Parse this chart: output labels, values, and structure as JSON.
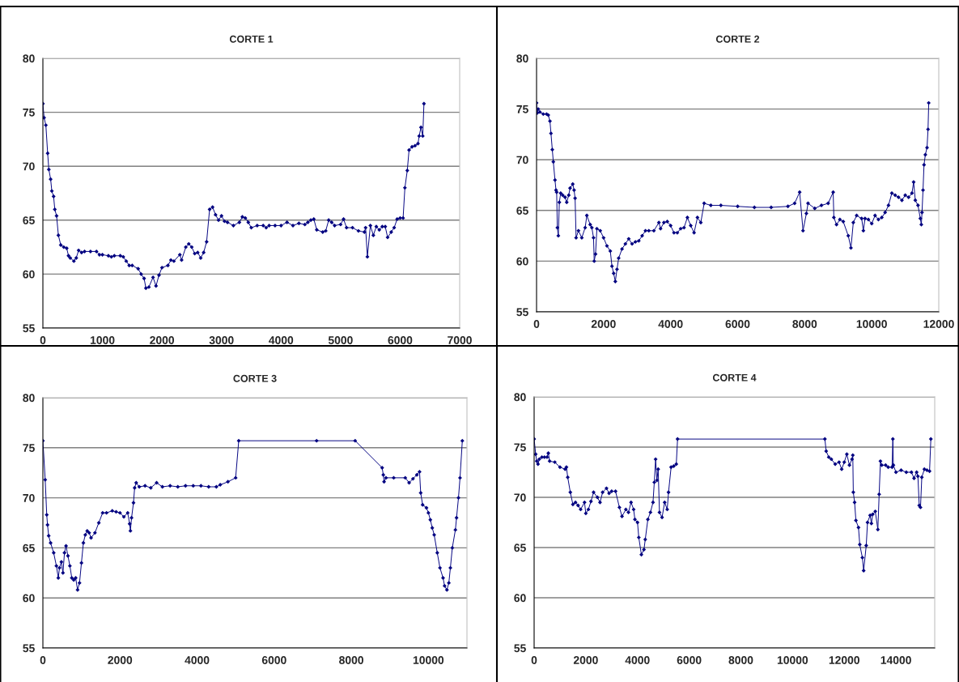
{
  "chart_data": [
    {
      "type": "line",
      "title": "CORTE 1",
      "xlim": [
        0,
        7000
      ],
      "xticks": [
        0,
        1000,
        2000,
        3000,
        4000,
        5000,
        6000,
        7000
      ],
      "ylim": [
        55,
        80
      ],
      "yticks": [
        55,
        60,
        65,
        70,
        75,
        80
      ],
      "grid": "y",
      "marker": "diamond",
      "line_style": "solid",
      "series": [
        {
          "color": "#000080",
          "x": [
            0,
            20,
            50,
            80,
            100,
            130,
            150,
            180,
            200,
            230,
            260,
            300,
            350,
            400,
            430,
            460,
            520,
            560,
            600,
            650,
            700,
            800,
            900,
            950,
            1000,
            1100,
            1150,
            1200,
            1300,
            1350,
            1400,
            1450,
            1500,
            1600,
            1650,
            1700,
            1730,
            1780,
            1850,
            1900,
            1950,
            2000,
            2100,
            2150,
            2200,
            2300,
            2330,
            2400,
            2450,
            2500,
            2550,
            2600,
            2650,
            2700,
            2750,
            2800,
            2850,
            2900,
            2950,
            3000,
            3050,
            3100,
            3200,
            3300,
            3350,
            3400,
            3450,
            3500,
            3600,
            3700,
            3750,
            3800,
            3900,
            4000,
            4100,
            4200,
            4300,
            4400,
            4450,
            4500,
            4550,
            4600,
            4700,
            4750,
            4800,
            4850,
            4900,
            5000,
            5050,
            5100,
            5200,
            5300,
            5400,
            5420,
            5450,
            5500,
            5550,
            5600,
            5650,
            5700,
            5750,
            5790,
            5850,
            5900,
            5950,
            6000,
            6050,
            6080,
            6120,
            6150,
            6200,
            6250,
            6300,
            6320,
            6350,
            6380,
            6400
          ],
          "values": [
            75.8,
            74.5,
            73.8,
            71.2,
            69.7,
            68.8,
            67.7,
            67.2,
            66,
            65.4,
            63.6,
            62.7,
            62.5,
            62.4,
            61.7,
            61.5,
            61.2,
            61.5,
            62.2,
            62,
            62.1,
            62.1,
            62.1,
            61.8,
            61.8,
            61.7,
            61.6,
            61.7,
            61.7,
            61.6,
            61.2,
            60.8,
            60.8,
            60.5,
            60,
            59.6,
            58.7,
            58.8,
            59.7,
            58.9,
            59.9,
            60.6,
            60.8,
            61.3,
            61.2,
            61.8,
            61.3,
            62.5,
            62.8,
            62.5,
            61.9,
            62,
            61.5,
            62,
            63,
            66,
            66.2,
            65.5,
            65,
            65.4,
            64.9,
            64.8,
            64.5,
            64.8,
            65.3,
            65.2,
            64.8,
            64.3,
            64.5,
            64.5,
            64.3,
            64.5,
            64.5,
            64.5,
            64.8,
            64.5,
            64.7,
            64.6,
            64.8,
            65,
            65.1,
            64.1,
            63.9,
            64,
            65,
            64.8,
            64.5,
            64.6,
            65.1,
            64.3,
            64.3,
            64,
            63.9,
            64.3,
            61.6,
            64.5,
            63.6,
            64.4,
            64.1,
            64.4,
            64.4,
            63.4,
            63.9,
            64.3,
            65.1,
            65.2,
            65.2,
            68,
            69.6,
            71.5,
            71.8,
            71.9,
            72.1,
            72.8,
            73.6,
            72.8,
            75.8
          ]
        }
      ]
    },
    {
      "type": "line",
      "title": "CORTE 2",
      "xlim": [
        0,
        12000
      ],
      "xticks": [
        0,
        2000,
        4000,
        6000,
        8000,
        10000,
        12000
      ],
      "ylim": [
        55,
        80
      ],
      "yticks": [
        55,
        60,
        65,
        70,
        75,
        80
      ],
      "grid": "y",
      "marker": "diamond",
      "line_style": "solid",
      "series": [
        {
          "color": "#000080",
          "x": [
            0,
            20,
            50,
            100,
            200,
            300,
            350,
            400,
            430,
            470,
            500,
            550,
            580,
            600,
            620,
            650,
            680,
            720,
            780,
            850,
            900,
            960,
            1000,
            1080,
            1120,
            1150,
            1180,
            1250,
            1350,
            1450,
            1500,
            1600,
            1650,
            1700,
            1720,
            1760,
            1800,
            1900,
            2000,
            2100,
            2200,
            2250,
            2300,
            2350,
            2400,
            2450,
            2550,
            2650,
            2750,
            2850,
            2950,
            3050,
            3150,
            3250,
            3350,
            3500,
            3650,
            3700,
            3800,
            3900,
            4000,
            4100,
            4200,
            4300,
            4400,
            4500,
            4600,
            4700,
            4800,
            4900,
            5000,
            5200,
            5500,
            6000,
            6500,
            7000,
            7500,
            7700,
            7850,
            7950,
            8050,
            8100,
            8300,
            8500,
            8700,
            8850,
            8870,
            8950,
            9050,
            9150,
            9300,
            9380,
            9450,
            9550,
            9700,
            9750,
            9800,
            9900,
            10000,
            10100,
            10200,
            10300,
            10400,
            10500,
            10600,
            10700,
            10800,
            10900,
            11000,
            11100,
            11200,
            11250,
            11300,
            11380,
            11450,
            11480,
            11500,
            11530,
            11560,
            11600,
            11650,
            11680,
            11700
          ],
          "values": [
            75.6,
            74.6,
            75,
            74.7,
            74.5,
            74.5,
            74.4,
            73.8,
            72.6,
            71,
            69.8,
            68,
            67,
            66.8,
            63.3,
            62.5,
            65.8,
            66.7,
            66.5,
            66.3,
            65.8,
            66.5,
            67.2,
            67.6,
            67,
            66.2,
            62.3,
            63,
            62.3,
            63.3,
            64.5,
            63.6,
            63.3,
            62.3,
            60,
            60.7,
            63.2,
            63,
            62.3,
            61.5,
            61,
            59.5,
            58.8,
            58,
            59.2,
            60.3,
            61.2,
            61.7,
            62.2,
            61.7,
            61.9,
            62,
            62.5,
            63,
            63,
            63,
            63.8,
            63.2,
            63.8,
            63.9,
            63.5,
            62.8,
            62.8,
            63.2,
            63.3,
            64.3,
            63.5,
            62.8,
            64.3,
            63.8,
            65.7,
            65.5,
            65.5,
            65.4,
            65.3,
            65.3,
            65.4,
            65.7,
            66.8,
            63,
            64.7,
            65.7,
            65.2,
            65.5,
            65.7,
            66.8,
            64.3,
            63.6,
            64.1,
            63.9,
            62.5,
            61.3,
            63.8,
            64.5,
            64.2,
            63,
            64.2,
            64.1,
            63.7,
            64.5,
            64.1,
            64.3,
            64.8,
            65.5,
            66.7,
            66.5,
            66.3,
            66,
            66.5,
            66.3,
            66.7,
            67.8,
            66,
            65.5,
            64.2,
            63.6,
            64.8,
            67,
            69.5,
            70.5,
            71.2,
            73,
            75.6
          ]
        }
      ]
    },
    {
      "type": "line",
      "title": "CORTE 3",
      "xlim": [
        0,
        11000
      ],
      "xticks": [
        0,
        2000,
        4000,
        6000,
        8000,
        10000
      ],
      "ylim": [
        55,
        80
      ],
      "yticks": [
        55,
        60,
        65,
        70,
        75,
        80
      ],
      "grid": "y",
      "marker": "diamond",
      "line_style": "solid",
      "series": [
        {
          "color": "#000080",
          "x": [
            0,
            60,
            100,
            120,
            150,
            200,
            280,
            350,
            400,
            430,
            480,
            520,
            560,
            600,
            650,
            700,
            750,
            800,
            850,
            900,
            950,
            1000,
            1050,
            1100,
            1150,
            1200,
            1250,
            1350,
            1450,
            1550,
            1650,
            1800,
            1900,
            2000,
            2100,
            2200,
            2250,
            2270,
            2300,
            2350,
            2380,
            2420,
            2500,
            2650,
            2800,
            2950,
            3100,
            3300,
            3500,
            3700,
            3900,
            4100,
            4300,
            4500,
            4600,
            4800,
            5000,
            5080,
            7100,
            8100,
            8800,
            8830,
            8850,
            8900,
            9100,
            9400,
            9500,
            9600,
            9700,
            9770,
            9800,
            9850,
            9950,
            10000,
            10050,
            10100,
            10150,
            10230,
            10300,
            10380,
            10420,
            10480,
            10530,
            10570,
            10620,
            10700,
            10730,
            10780,
            10820,
            10880
          ],
          "values": [
            75.7,
            71.8,
            68.3,
            67.3,
            66.2,
            65.5,
            64.5,
            63.2,
            62,
            63,
            63.6,
            62.5,
            64.5,
            65.2,
            64.2,
            63.2,
            62,
            61.8,
            62,
            60.8,
            61.5,
            63.5,
            65.5,
            66.3,
            66.7,
            66.5,
            66,
            66.5,
            67.5,
            68.5,
            68.5,
            68.7,
            68.6,
            68.5,
            68.1,
            68.5,
            67.4,
            66.7,
            68,
            69.5,
            71,
            71.5,
            71.1,
            71.2,
            71,
            71.5,
            71.1,
            71.2,
            71.1,
            71.2,
            71.2,
            71.2,
            71.1,
            71.1,
            71.3,
            71.6,
            72,
            75.7,
            75.7,
            75.7,
            73,
            72.3,
            71.6,
            72,
            72,
            72,
            71.5,
            71.9,
            72.3,
            72.6,
            70.5,
            69.3,
            69,
            68.5,
            67.8,
            67,
            66.3,
            64.5,
            63,
            62,
            61.2,
            60.8,
            61.5,
            63,
            65,
            66.8,
            68,
            70,
            72,
            75.7
          ]
        }
      ]
    },
    {
      "type": "line",
      "title": "CORTE 4",
      "xlim": [
        0,
        15500
      ],
      "xticks": [
        0,
        2000,
        4000,
        6000,
        8000,
        10000,
        12000,
        14000
      ],
      "ylim": [
        55,
        80
      ],
      "yticks": [
        55,
        60,
        65,
        70,
        75,
        80
      ],
      "grid": "y",
      "marker": "diamond",
      "line_style": "solid",
      "series": [
        {
          "color": "#000080",
          "x": [
            0,
            60,
            100,
            150,
            200,
            300,
            400,
            500,
            550,
            600,
            800,
            1000,
            1200,
            1250,
            1300,
            1400,
            1500,
            1600,
            1700,
            1800,
            1950,
            2000,
            2100,
            2200,
            2300,
            2450,
            2550,
            2650,
            2800,
            2900,
            3000,
            3150,
            3300,
            3400,
            3550,
            3650,
            3750,
            3850,
            3900,
            4000,
            4050,
            4150,
            4250,
            4300,
            4400,
            4500,
            4600,
            4650,
            4700,
            4750,
            4800,
            4850,
            4950,
            5050,
            5150,
            5200,
            5300,
            5400,
            5500,
            5550,
            11250,
            11300,
            11400,
            11500,
            11650,
            11800,
            11900,
            12000,
            12100,
            12200,
            12300,
            12330,
            12350,
            12400,
            12450,
            12550,
            12600,
            12700,
            12750,
            12850,
            12900,
            13000,
            13050,
            13100,
            13200,
            13300,
            13350,
            13400,
            13450,
            13600,
            13700,
            13850,
            13880,
            13900,
            14000,
            14200,
            14400,
            14600,
            14700,
            14800,
            14850,
            14900,
            14950,
            15000,
            15100,
            15200,
            15300,
            15350
          ],
          "values": [
            75.8,
            74.3,
            73.6,
            73.3,
            73.8,
            74,
            74,
            74,
            74.4,
            73.6,
            73.5,
            73,
            72.8,
            73,
            72,
            70.5,
            69.3,
            69.5,
            69.2,
            68.8,
            69.5,
            68.4,
            68.8,
            69.6,
            70.5,
            70,
            69.5,
            70.5,
            70.9,
            70.4,
            70.6,
            70.6,
            69,
            68.1,
            68.8,
            68.5,
            69.5,
            68.8,
            67.8,
            67.5,
            66,
            64.3,
            64.8,
            65.8,
            67.8,
            68.5,
            69.5,
            71.5,
            73.8,
            71.7,
            72.8,
            68.5,
            68,
            69.5,
            68.8,
            70.5,
            73,
            73.1,
            73.3,
            75.8,
            75.8,
            74.6,
            74,
            73.8,
            73.3,
            73.5,
            72.8,
            73.5,
            74.3,
            73.2,
            73.8,
            74.2,
            70.5,
            69.5,
            67.7,
            67,
            65.3,
            64,
            62.7,
            65.2,
            67.5,
            68.2,
            67.4,
            68.3,
            68.6,
            66.8,
            70.3,
            73.6,
            73.2,
            73.2,
            73,
            73,
            75.8,
            73.2,
            72.5,
            72.7,
            72.5,
            72.5,
            71.9,
            72.5,
            72.1,
            69.2,
            69,
            72,
            72.8,
            72.7,
            72.6,
            75.8
          ]
        }
      ]
    }
  ]
}
